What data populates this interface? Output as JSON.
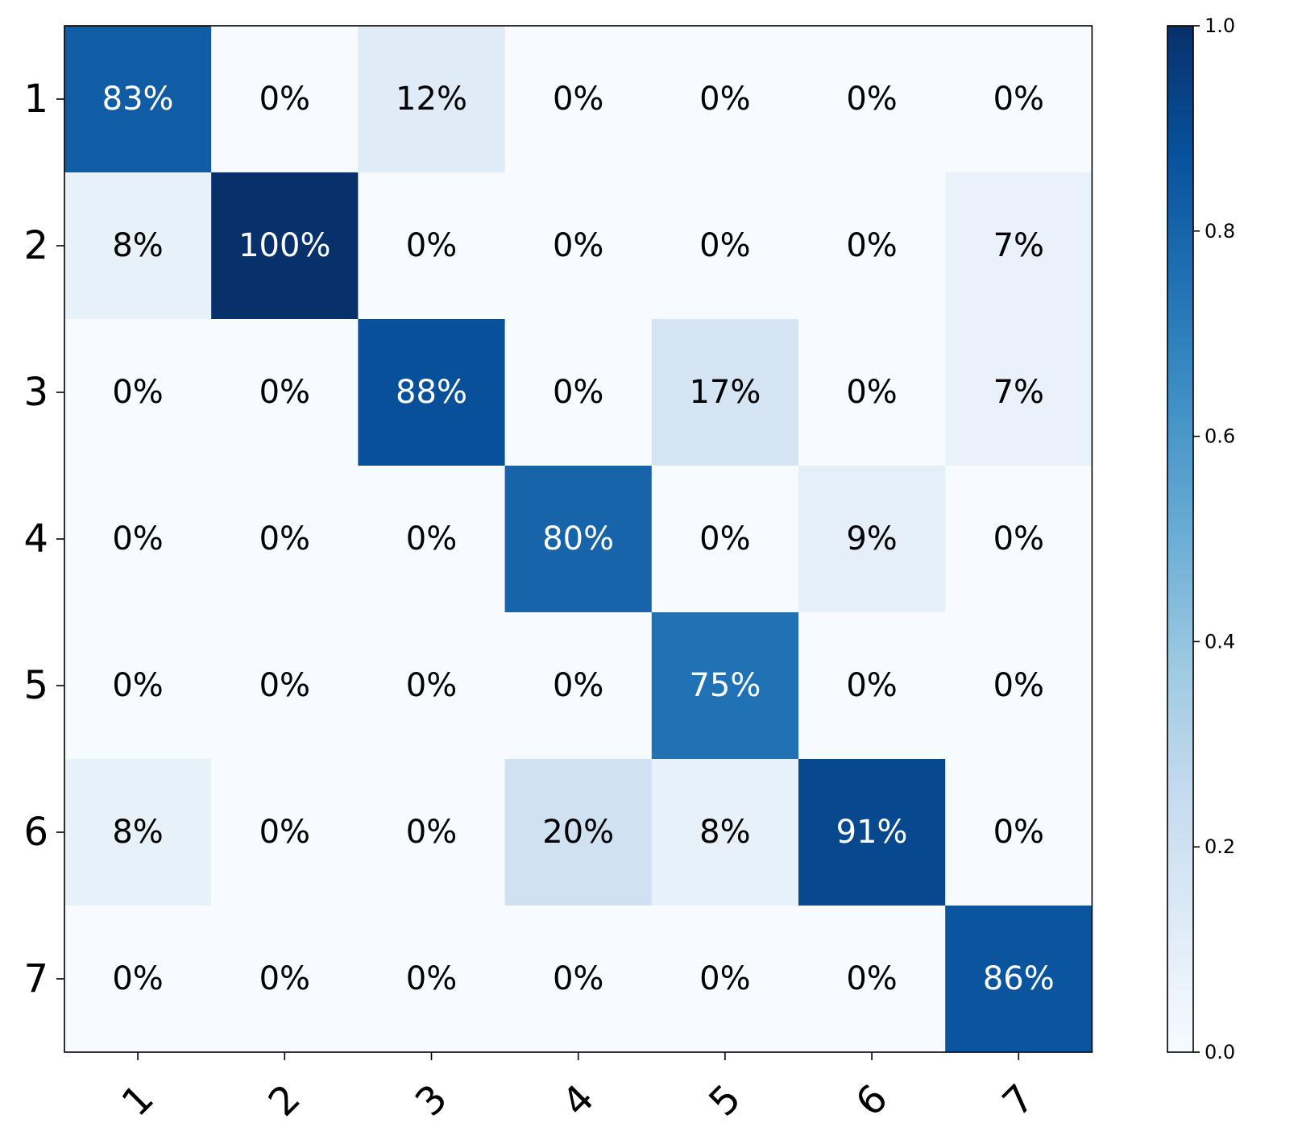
{
  "chart_data": {
    "type": "heatmap",
    "title": "",
    "xlabel": "",
    "ylabel": "",
    "x_categories": [
      "1",
      "2",
      "3",
      "4",
      "5",
      "6",
      "7"
    ],
    "y_categories": [
      "1",
      "2",
      "3",
      "4",
      "5",
      "6",
      "7"
    ],
    "values": [
      [
        0.83,
        0.0,
        0.12,
        0.0,
        0.0,
        0.0,
        0.0
      ],
      [
        0.08,
        1.0,
        0.0,
        0.0,
        0.0,
        0.0,
        0.07
      ],
      [
        0.0,
        0.0,
        0.88,
        0.0,
        0.17,
        0.0,
        0.07
      ],
      [
        0.0,
        0.0,
        0.0,
        0.8,
        0.0,
        0.09,
        0.0
      ],
      [
        0.0,
        0.0,
        0.0,
        0.0,
        0.75,
        0.0,
        0.0
      ],
      [
        0.08,
        0.0,
        0.0,
        0.2,
        0.08,
        0.91,
        0.0
      ],
      [
        0.0,
        0.0,
        0.0,
        0.0,
        0.0,
        0.0,
        0.86
      ]
    ],
    "cell_labels": [
      [
        "83%",
        "0%",
        "12%",
        "0%",
        "0%",
        "0%",
        "0%"
      ],
      [
        "8%",
        "100%",
        "0%",
        "0%",
        "0%",
        "0%",
        "7%"
      ],
      [
        "0%",
        "0%",
        "88%",
        "0%",
        "17%",
        "0%",
        "7%"
      ],
      [
        "0%",
        "0%",
        "0%",
        "80%",
        "0%",
        "9%",
        "0%"
      ],
      [
        "0%",
        "0%",
        "0%",
        "0%",
        "75%",
        "0%",
        "0%"
      ],
      [
        "8%",
        "0%",
        "0%",
        "20%",
        "8%",
        "91%",
        "0%"
      ],
      [
        "0%",
        "0%",
        "0%",
        "0%",
        "0%",
        "0%",
        "86%"
      ]
    ],
    "colormap": "Blues",
    "vmin": 0.0,
    "vmax": 1.0,
    "colorbar": {
      "ticks": [
        "0.0",
        "0.2",
        "0.4",
        "0.6",
        "0.8",
        "1.0"
      ],
      "tick_values": [
        0.0,
        0.2,
        0.4,
        0.6,
        0.8,
        1.0
      ],
      "placement": "right"
    },
    "x_tick_rotation": "45 degrees",
    "grid": false,
    "legend": false
  }
}
